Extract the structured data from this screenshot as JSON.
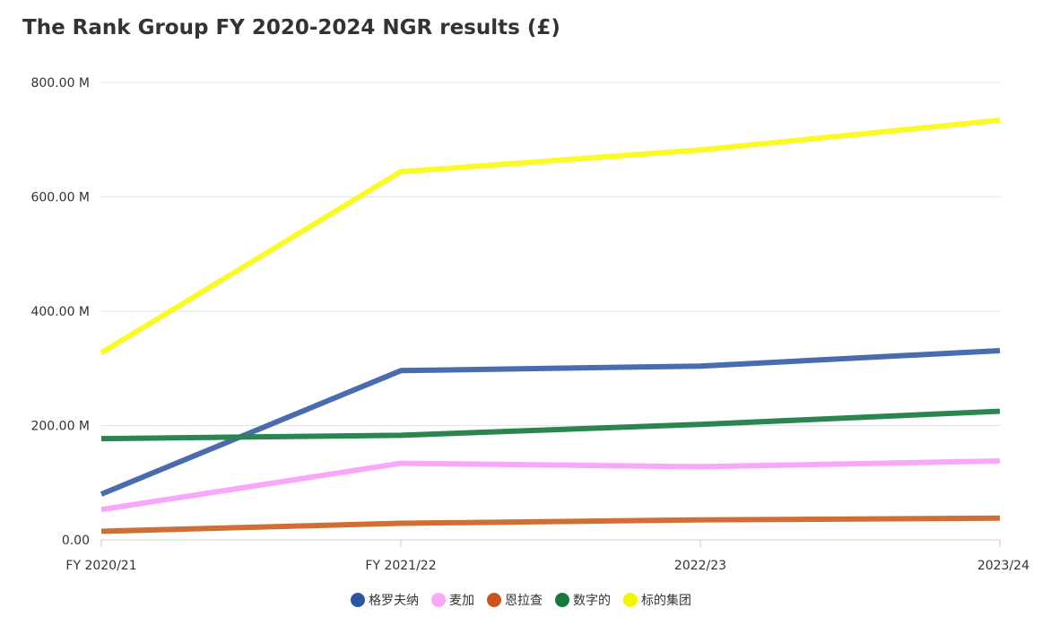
{
  "chart_data": {
    "type": "line",
    "title": "The Rank Group FY 2020-2024 NGR results (£)",
    "categories": [
      "FY 2020/21",
      "FY 2021/22",
      "2022/23",
      "2023/24"
    ],
    "ylim": [
      0,
      800000000
    ],
    "yticks": [
      0,
      200000000,
      400000000,
      600000000,
      800000000
    ],
    "ytick_labels": [
      "0.00",
      "200.00 M",
      "400.00 M",
      "600.00 M",
      "800.00 M"
    ],
    "grid": true,
    "legend_position": "bottom",
    "series": [
      {
        "name": "格罗夫纳",
        "color": "#4A6BAE",
        "legend_color": "#2B55A3",
        "values": [
          80000000,
          296000000,
          304000000,
          331000000
        ]
      },
      {
        "name": "麦加",
        "color": "#F9A8F9",
        "legend_color": "#F9A8F9",
        "values": [
          53000000,
          134000000,
          128000000,
          138000000
        ]
      },
      {
        "name": "恩拉查",
        "color": "#D06F35",
        "legend_color": "#C8551E",
        "values": [
          15000000,
          29000000,
          35000000,
          38000000
        ]
      },
      {
        "name": "数字的",
        "color": "#2B8550",
        "legend_color": "#177A3A",
        "values": [
          177000000,
          183000000,
          202000000,
          225000000
        ]
      },
      {
        "name": "标的集团",
        "color": "#FBF927",
        "legend_color": "#F5F500",
        "values": [
          327000000,
          644000000,
          682000000,
          734000000
        ]
      }
    ]
  }
}
